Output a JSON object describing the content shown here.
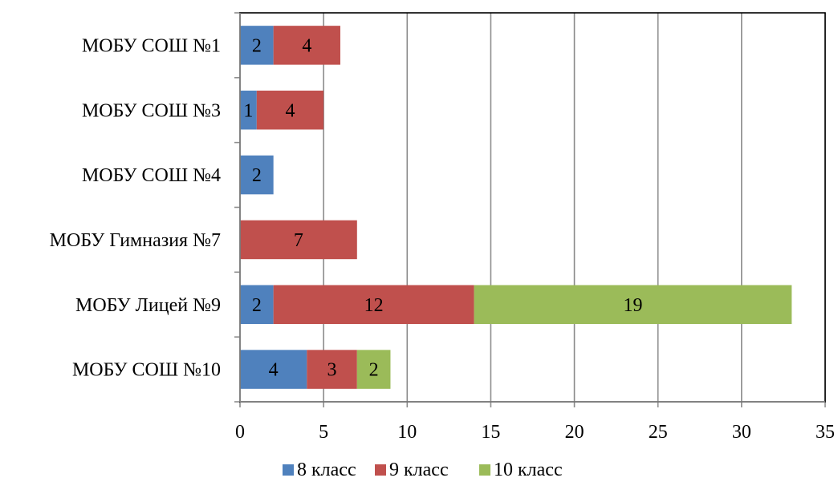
{
  "chart_data": {
    "type": "bar",
    "orientation": "horizontal",
    "stacked": true,
    "categories": [
      "МОБУ СОШ №1",
      "МОБУ СОШ №3",
      "МОБУ СОШ №4",
      "МОБУ Гимназия №7",
      "МОБУ Лицей №9",
      "МОБУ СОШ №10"
    ],
    "series": [
      {
        "name": "8 класс",
        "color": "#4F81BD",
        "values": [
          2,
          1,
          2,
          0,
          2,
          4
        ]
      },
      {
        "name": "9 класс",
        "color": "#C0504D",
        "values": [
          4,
          4,
          0,
          7,
          12,
          3
        ]
      },
      {
        "name": "10 класс",
        "color": "#9BBB59",
        "values": [
          0,
          0,
          0,
          0,
          19,
          2
        ]
      }
    ],
    "xlim": [
      0,
      35
    ],
    "x_ticks": [
      0,
      5,
      10,
      15,
      20,
      25,
      30,
      35
    ],
    "grid": true,
    "legend_position": "bottom",
    "title": "",
    "xlabel": "",
    "ylabel": ""
  }
}
